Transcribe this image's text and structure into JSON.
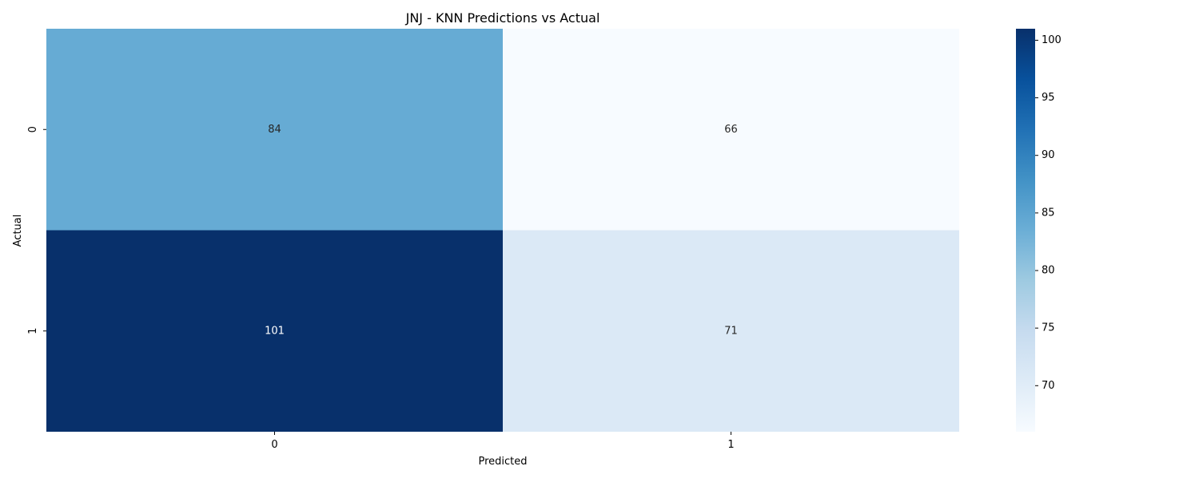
{
  "chart_data": {
    "type": "heatmap",
    "title": "JNJ - KNN Predictions vs Actual",
    "xlabel": "Predicted",
    "ylabel": "Actual",
    "x_categories": [
      "0",
      "1"
    ],
    "y_categories": [
      "0",
      "1"
    ],
    "values": [
      [
        84,
        66
      ],
      [
        101,
        71
      ]
    ],
    "colormap": "Blues",
    "color_range": [
      66,
      101
    ],
    "colorbar_ticks": [
      70,
      75,
      80,
      85,
      90,
      95,
      100
    ],
    "grid": false,
    "colorbar_placement": "right"
  }
}
